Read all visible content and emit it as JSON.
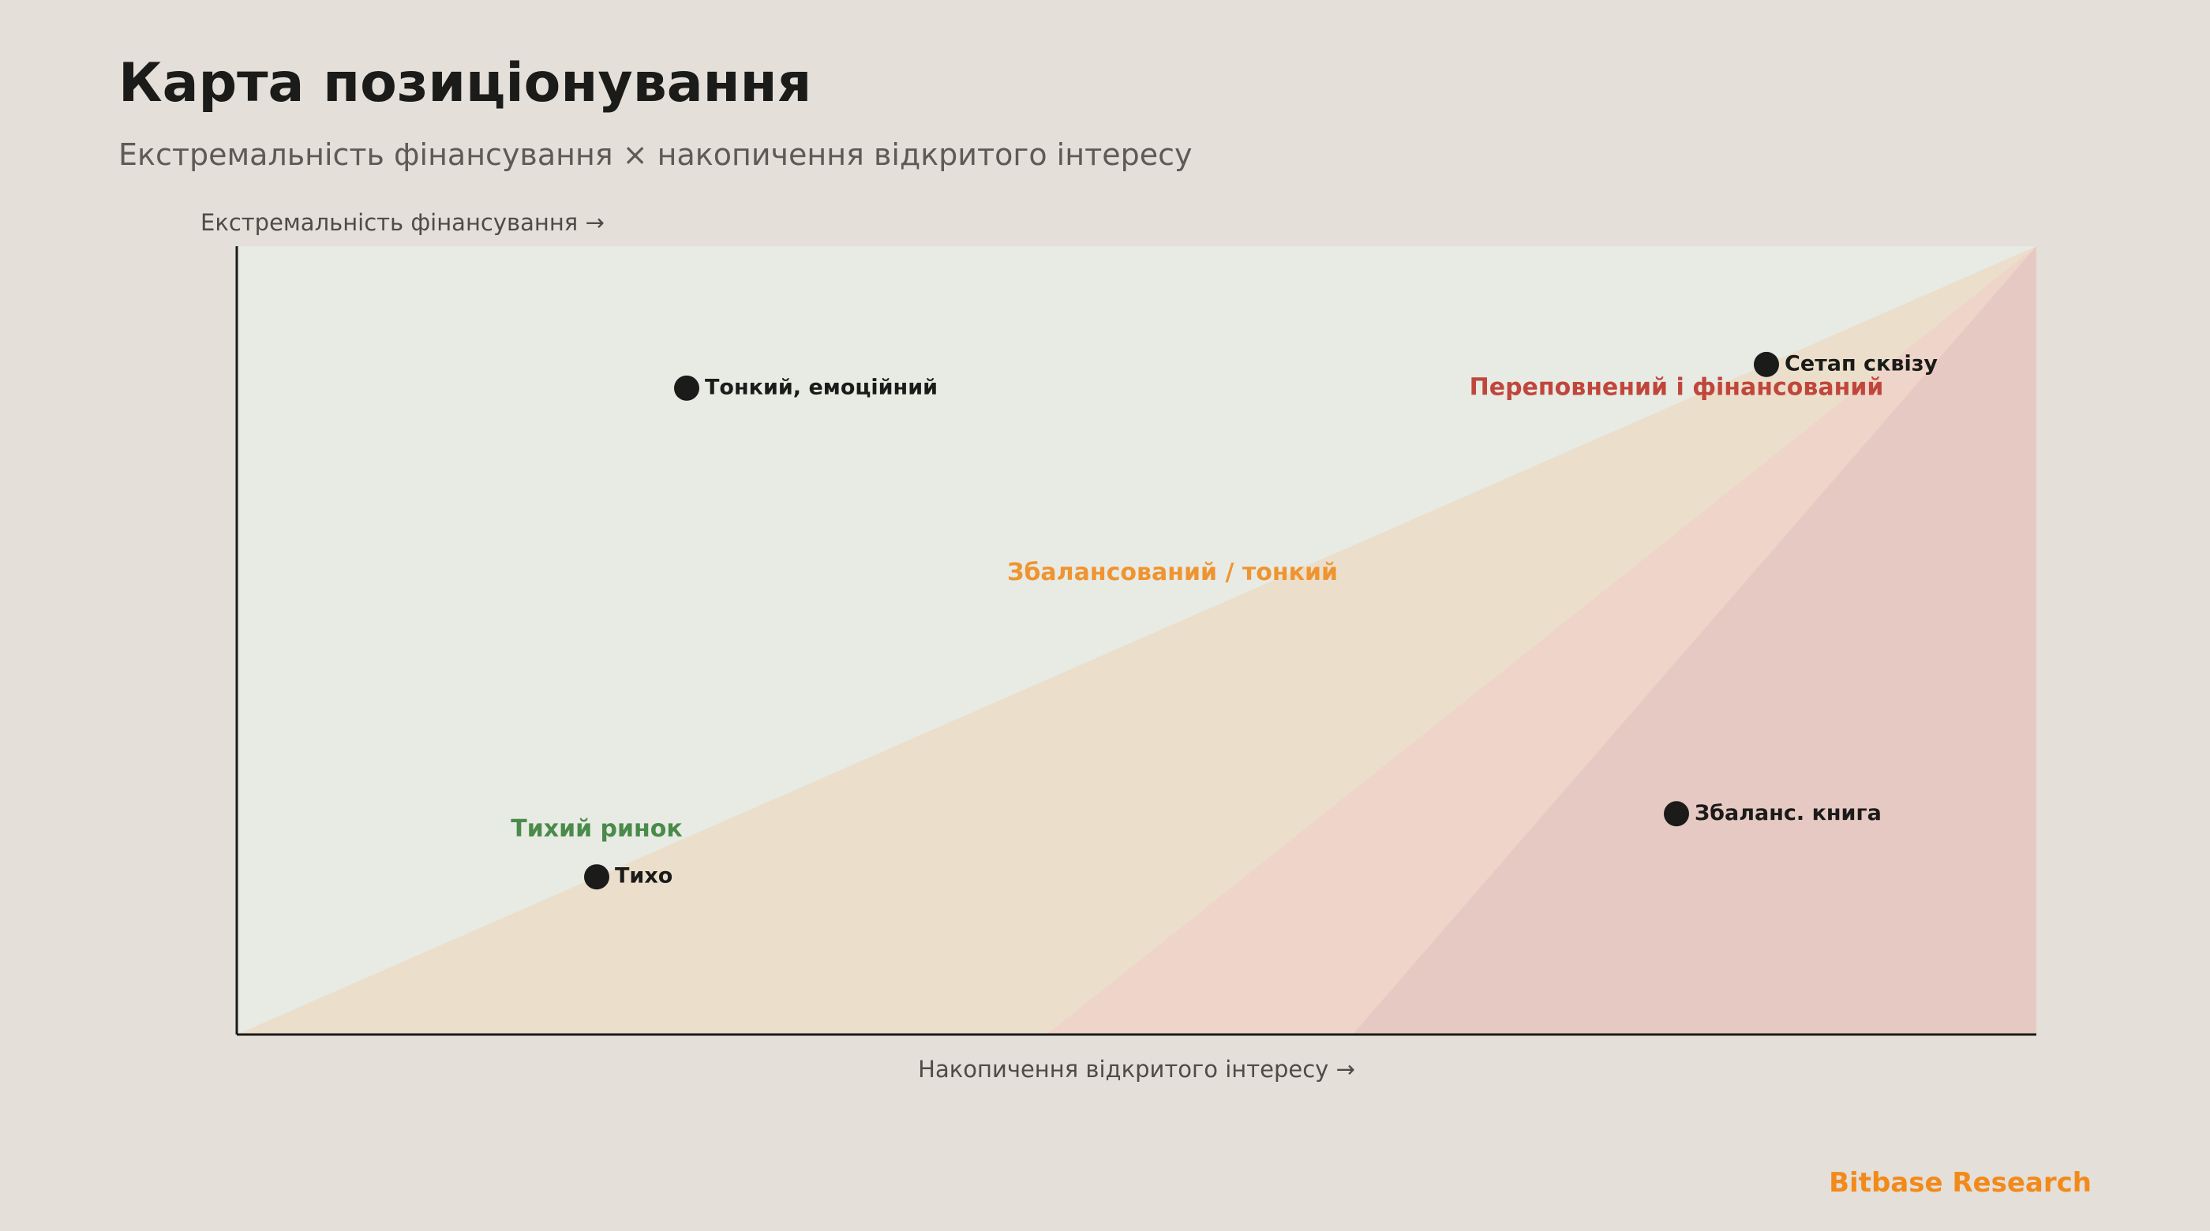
{
  "header": {
    "title": "Карта позиціонування",
    "subtitle": "Екстремальність фінансування × накопичення відкритого інтересу"
  },
  "brand": "Bitbase Research",
  "chart_data": {
    "type": "scatter",
    "xlabel": "Накопичення відкритого інтересу →",
    "ylabel": "Екстремальність фінансування →",
    "xlim": [
      0,
      1
    ],
    "ylim": [
      0,
      1
    ],
    "grid": false,
    "points": [
      {
        "label": "Тонкий, емоційний",
        "x": 0.25,
        "y": 0.82
      },
      {
        "label": "Сетап сквізу",
        "x": 0.85,
        "y": 0.85
      },
      {
        "label": "Тихо",
        "x": 0.2,
        "y": 0.2
      },
      {
        "label": "Збаланс. книга",
        "x": 0.8,
        "y": 0.28
      }
    ],
    "regions": [
      {
        "label": "Тихий ринок",
        "color": "#4a8a4a",
        "fill": "#e7ebe4",
        "polygon": [
          [
            0,
            0
          ],
          [
            1,
            1
          ],
          [
            0,
            1
          ]
        ],
        "label_x": 0.2,
        "label_y": 0.26
      },
      {
        "label": "Збалансований / тонкий",
        "color": "#ef9430",
        "fill": "#ebdfcc",
        "polygon": [
          [
            0,
            0
          ],
          [
            0.45,
            0
          ],
          [
            1,
            1
          ]
        ],
        "label_x": 0.52,
        "label_y": 0.585
      },
      {
        "label": "",
        "color": "",
        "fill": "#efd4ca",
        "polygon": [
          [
            0.45,
            0
          ],
          [
            0.62,
            0
          ],
          [
            1,
            1
          ]
        ],
        "label_x": null,
        "label_y": null
      },
      {
        "label": "Переповнений і фінансований",
        "color": "#c0463c",
        "fill": "#e7c9c3",
        "polygon": [
          [
            0.62,
            0
          ],
          [
            1,
            0
          ],
          [
            1,
            1
          ]
        ],
        "label_x": 0.8,
        "label_y": 0.82
      }
    ]
  }
}
